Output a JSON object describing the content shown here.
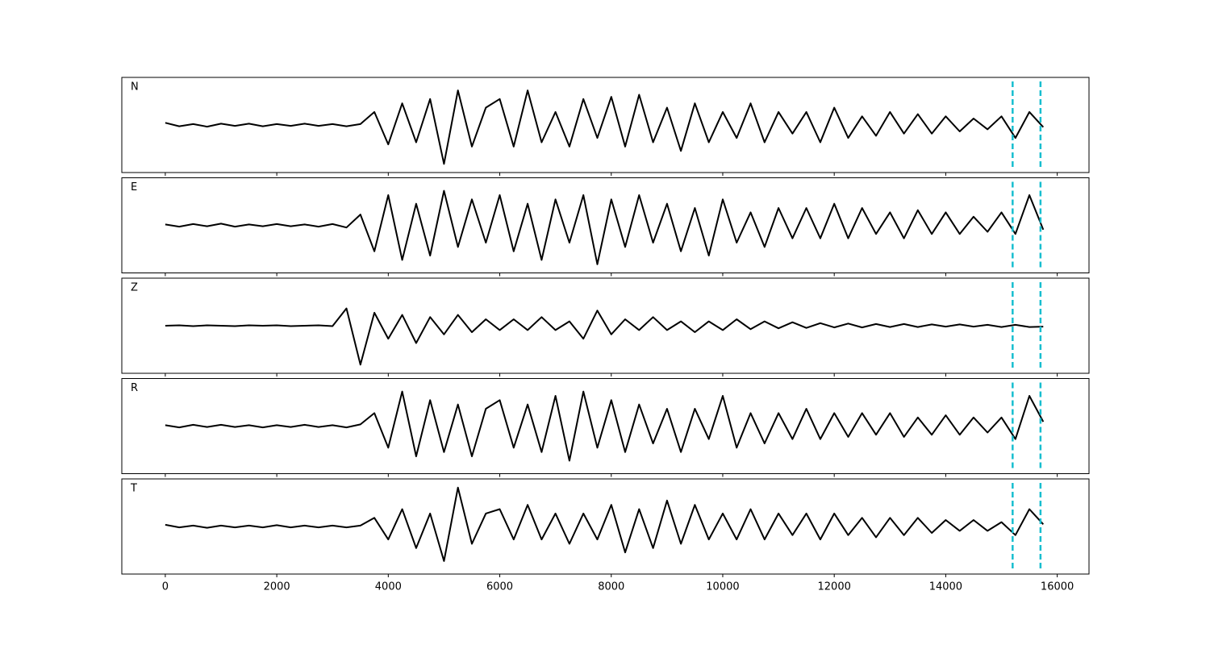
{
  "chart_data": {
    "type": "line",
    "layout": "stacked",
    "x": [
      0,
      250,
      500,
      750,
      1000,
      1250,
      1500,
      1750,
      2000,
      2250,
      2500,
      2750,
      3000,
      3250,
      3500,
      3750,
      4000,
      4250,
      4500,
      4750,
      5000,
      5250,
      5500,
      5750,
      6000,
      6250,
      6500,
      6750,
      7000,
      7250,
      7500,
      7750,
      8000,
      8250,
      8500,
      8750,
      9000,
      9250,
      9500,
      9750,
      10000,
      10250,
      10500,
      10750,
      11000,
      11250,
      11500,
      11750,
      12000,
      12250,
      12500,
      12750,
      13000,
      13250,
      13500,
      13750,
      14000,
      14250,
      14500,
      14750,
      15000,
      15250,
      15500,
      15750
    ],
    "series": [
      {
        "name": "N",
        "color": "#000000",
        "values": [
          0.05,
          -0.03,
          0.02,
          -0.04,
          0.03,
          -0.02,
          0.03,
          -0.03,
          0.02,
          -0.02,
          0.03,
          -0.02,
          0.02,
          -0.03,
          0.02,
          0.3,
          -0.45,
          0.5,
          -0.4,
          0.6,
          -0.9,
          0.8,
          -0.5,
          0.4,
          0.6,
          -0.5,
          0.8,
          -0.4,
          0.3,
          -0.5,
          0.6,
          -0.3,
          0.65,
          -0.5,
          0.7,
          -0.4,
          0.4,
          -0.6,
          0.5,
          -0.4,
          0.3,
          -0.3,
          0.5,
          -0.4,
          0.3,
          -0.2,
          0.3,
          -0.4,
          0.4,
          -0.3,
          0.2,
          -0.25,
          0.3,
          -0.2,
          0.25,
          -0.2,
          0.2,
          -0.15,
          0.15,
          -0.1,
          0.2,
          -0.3,
          0.3,
          -0.05
        ]
      },
      {
        "name": "E",
        "color": "#000000",
        "values": [
          0.02,
          -0.03,
          0.03,
          -0.02,
          0.04,
          -0.03,
          0.02,
          -0.02,
          0.03,
          -0.02,
          0.02,
          -0.03,
          0.03,
          -0.05,
          0.25,
          -0.6,
          0.7,
          -0.8,
          0.5,
          -0.7,
          0.8,
          -0.5,
          0.6,
          -0.4,
          0.7,
          -0.6,
          0.5,
          -0.8,
          0.6,
          -0.4,
          0.7,
          -0.9,
          0.6,
          -0.5,
          0.7,
          -0.4,
          0.5,
          -0.6,
          0.4,
          -0.7,
          0.6,
          -0.4,
          0.3,
          -0.5,
          0.4,
          -0.3,
          0.4,
          -0.3,
          0.5,
          -0.3,
          0.4,
          -0.2,
          0.3,
          -0.3,
          0.35,
          -0.2,
          0.3,
          -0.2,
          0.2,
          -0.15,
          0.3,
          -0.2,
          0.7,
          -0.1
        ]
      },
      {
        "name": "Z",
        "color": "#000000",
        "values": [
          0.0,
          0.01,
          -0.01,
          0.01,
          0,
          -0.01,
          0.01,
          0,
          0.01,
          -0.01,
          0,
          0.01,
          -0.01,
          0.4,
          -0.9,
          0.3,
          -0.3,
          0.25,
          -0.4,
          0.2,
          -0.2,
          0.25,
          -0.15,
          0.15,
          -0.1,
          0.15,
          -0.1,
          0.2,
          -0.1,
          0.1,
          -0.3,
          0.35,
          -0.2,
          0.15,
          -0.1,
          0.2,
          -0.1,
          0.1,
          -0.15,
          0.1,
          -0.1,
          0.15,
          -0.08,
          0.1,
          -0.06,
          0.08,
          -0.05,
          0.06,
          -0.04,
          0.05,
          -0.04,
          0.04,
          -0.03,
          0.04,
          -0.03,
          0.03,
          -0.02,
          0.03,
          -0.02,
          0.02,
          -0.03,
          0.02,
          -0.03,
          -0.02
        ]
      },
      {
        "name": "R",
        "color": "#000000",
        "values": [
          0.02,
          -0.03,
          0.03,
          -0.02,
          0.03,
          -0.02,
          0.02,
          -0.03,
          0.02,
          -0.02,
          0.03,
          -0.02,
          0.02,
          -0.03,
          0.04,
          0.3,
          -0.5,
          0.8,
          -0.7,
          0.6,
          -0.6,
          0.5,
          -0.7,
          0.4,
          0.6,
          -0.5,
          0.5,
          -0.6,
          0.7,
          -0.8,
          0.8,
          -0.5,
          0.6,
          -0.6,
          0.5,
          -0.4,
          0.4,
          -0.6,
          0.4,
          -0.3,
          0.7,
          -0.5,
          0.3,
          -0.4,
          0.3,
          -0.3,
          0.4,
          -0.3,
          0.3,
          -0.25,
          0.3,
          -0.2,
          0.3,
          -0.25,
          0.2,
          -0.2,
          0.25,
          -0.2,
          0.2,
          -0.15,
          0.2,
          -0.3,
          0.7,
          0.1
        ]
      },
      {
        "name": "T",
        "color": "#000000",
        "values": [
          0.04,
          -0.02,
          0.02,
          -0.03,
          0.02,
          -0.02,
          0.02,
          -0.02,
          0.03,
          -0.02,
          0.02,
          -0.02,
          0.02,
          -0.02,
          0.02,
          0.2,
          -0.3,
          0.4,
          -0.5,
          0.3,
          -0.8,
          0.9,
          -0.4,
          0.3,
          0.4,
          -0.3,
          0.5,
          -0.3,
          0.3,
          -0.4,
          0.3,
          -0.3,
          0.5,
          -0.6,
          0.4,
          -0.5,
          0.6,
          -0.4,
          0.5,
          -0.3,
          0.3,
          -0.3,
          0.4,
          -0.3,
          0.3,
          -0.2,
          0.3,
          -0.3,
          0.3,
          -0.2,
          0.2,
          -0.25,
          0.2,
          -0.2,
          0.2,
          -0.15,
          0.15,
          -0.1,
          0.15,
          -0.1,
          0.1,
          -0.2,
          0.4,
          0.05
        ]
      }
    ],
    "vlines": [
      15200,
      15700
    ],
    "vline_color": "#17becf",
    "xlim": [
      -780,
      16570
    ],
    "xticks": [
      0,
      2000,
      4000,
      6000,
      8000,
      10000,
      12000,
      14000,
      16000
    ],
    "ylim": [
      -1.1,
      1.1
    ]
  }
}
